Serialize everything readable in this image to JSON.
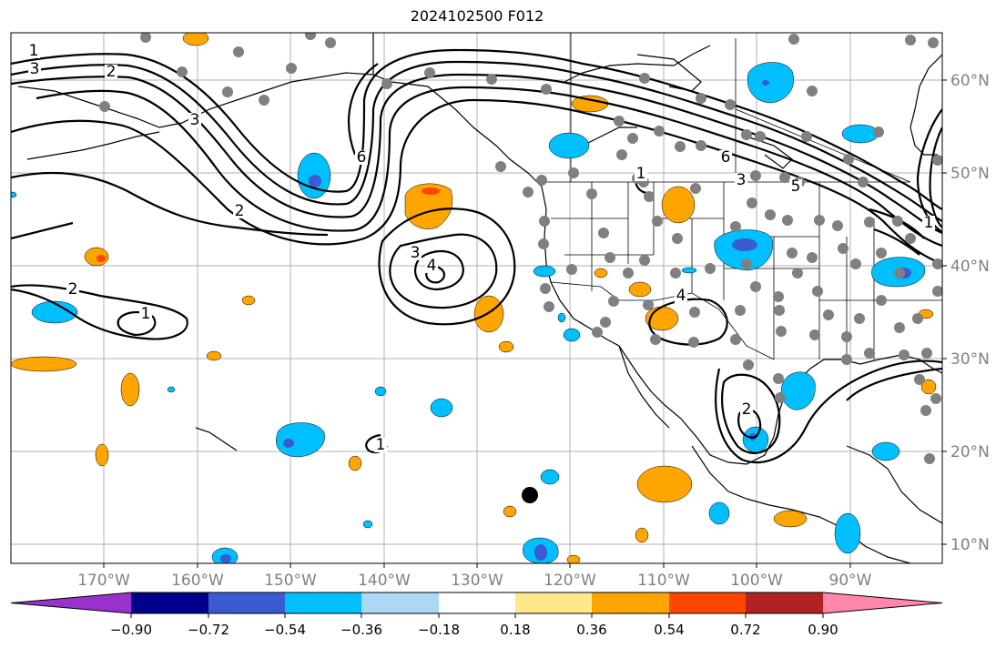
{
  "title": "2024102500 F012",
  "lon_labels": [
    "170°W",
    "160°W",
    "150°W",
    "140°W",
    "130°W",
    "120°W",
    "110°W",
    "100°W",
    "90°W"
  ],
  "lat_labels": [
    "60°N",
    "50°N",
    "40°N",
    "30°N",
    "20°N",
    "10°N"
  ],
  "contour_labels": [
    "1",
    "3",
    "2",
    "3",
    "6",
    "2",
    "3",
    "4",
    "6",
    "1",
    "3",
    "5",
    "4",
    "1",
    "2",
    "1",
    "2",
    "1"
  ],
  "colorbar": {
    "colors": [
      "#9932cc",
      "#00008b",
      "#3a5bd1",
      "#00bfff",
      "#add8f5",
      "#ffffff",
      "#ffe88a",
      "#ffa500",
      "#ff4500",
      "#b22222",
      "#ff88aa"
    ],
    "tick_labels": [
      "−0.90",
      "−0.72",
      "−0.54",
      "−0.36",
      "−0.18",
      "0.18",
      "0.36",
      "0.54",
      "0.72",
      "0.90"
    ]
  },
  "colors": {
    "positive_light": "#ffa500",
    "positive_mid": "#ff4500",
    "negative_light": "#00bfff",
    "negative_mid": "#3a5bd1",
    "station": "#808080",
    "grid": "#b0b0b0",
    "axis_label": "#808080"
  }
}
